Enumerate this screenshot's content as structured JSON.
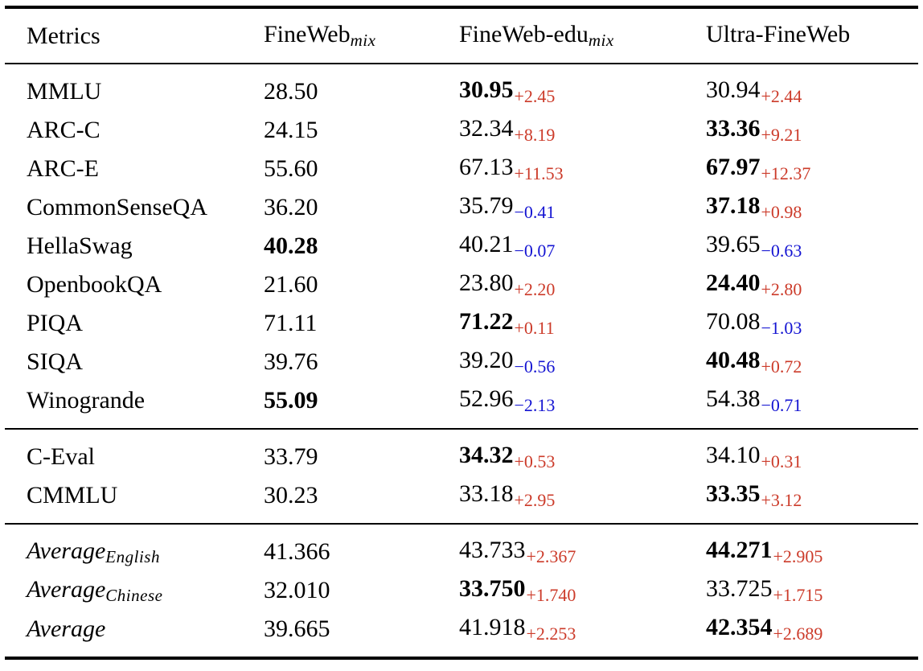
{
  "table": {
    "colors": {
      "gain": "#cc3b2a",
      "loss": "#1414d2"
    },
    "header": {
      "metrics": "Metrics",
      "col1": {
        "name": "FineWeb",
        "sub": "mix"
      },
      "col2": {
        "name": "FineWeb-edu",
        "sub": "mix"
      },
      "col3": {
        "name": "Ultra-FineWeb",
        "sub": ""
      }
    },
    "sections": [
      {
        "rows": [
          {
            "metric": "MMLU",
            "italic": false,
            "metric_sub": "",
            "cells": [
              {
                "value": "28.50",
                "bold": false,
                "delta": "",
                "dir": ""
              },
              {
                "value": "30.95",
                "bold": true,
                "delta": "+2.45",
                "dir": "pos"
              },
              {
                "value": "30.94",
                "bold": false,
                "delta": "+2.44",
                "dir": "pos"
              }
            ]
          },
          {
            "metric": "ARC-C",
            "italic": false,
            "metric_sub": "",
            "cells": [
              {
                "value": "24.15",
                "bold": false,
                "delta": "",
                "dir": ""
              },
              {
                "value": "32.34",
                "bold": false,
                "delta": "+8.19",
                "dir": "pos"
              },
              {
                "value": "33.36",
                "bold": true,
                "delta": "+9.21",
                "dir": "pos"
              }
            ]
          },
          {
            "metric": "ARC-E",
            "italic": false,
            "metric_sub": "",
            "cells": [
              {
                "value": "55.60",
                "bold": false,
                "delta": "",
                "dir": ""
              },
              {
                "value": "67.13",
                "bold": false,
                "delta": "+11.53",
                "dir": "pos"
              },
              {
                "value": "67.97",
                "bold": true,
                "delta": "+12.37",
                "dir": "pos"
              }
            ]
          },
          {
            "metric": "CommonSenseQA",
            "italic": false,
            "metric_sub": "",
            "cells": [
              {
                "value": "36.20",
                "bold": false,
                "delta": "",
                "dir": ""
              },
              {
                "value": "35.79",
                "bold": false,
                "delta": "−0.41",
                "dir": "neg"
              },
              {
                "value": "37.18",
                "bold": true,
                "delta": "+0.98",
                "dir": "pos"
              }
            ]
          },
          {
            "metric": "HellaSwag",
            "italic": false,
            "metric_sub": "",
            "cells": [
              {
                "value": "40.28",
                "bold": true,
                "delta": "",
                "dir": ""
              },
              {
                "value": "40.21",
                "bold": false,
                "delta": "−0.07",
                "dir": "neg"
              },
              {
                "value": "39.65",
                "bold": false,
                "delta": "−0.63",
                "dir": "neg"
              }
            ]
          },
          {
            "metric": "OpenbookQA",
            "italic": false,
            "metric_sub": "",
            "cells": [
              {
                "value": "21.60",
                "bold": false,
                "delta": "",
                "dir": ""
              },
              {
                "value": "23.80",
                "bold": false,
                "delta": "+2.20",
                "dir": "pos"
              },
              {
                "value": "24.40",
                "bold": true,
                "delta": "+2.80",
                "dir": "pos"
              }
            ]
          },
          {
            "metric": "PIQA",
            "italic": false,
            "metric_sub": "",
            "cells": [
              {
                "value": "71.11",
                "bold": false,
                "delta": "",
                "dir": ""
              },
              {
                "value": "71.22",
                "bold": true,
                "delta": "+0.11",
                "dir": "pos"
              },
              {
                "value": "70.08",
                "bold": false,
                "delta": "−1.03",
                "dir": "neg"
              }
            ]
          },
          {
            "metric": "SIQA",
            "italic": false,
            "metric_sub": "",
            "cells": [
              {
                "value": "39.76",
                "bold": false,
                "delta": "",
                "dir": ""
              },
              {
                "value": "39.20",
                "bold": false,
                "delta": "−0.56",
                "dir": "neg"
              },
              {
                "value": "40.48",
                "bold": true,
                "delta": "+0.72",
                "dir": "pos"
              }
            ]
          },
          {
            "metric": "Winogrande",
            "italic": false,
            "metric_sub": "",
            "cells": [
              {
                "value": "55.09",
                "bold": true,
                "delta": "",
                "dir": ""
              },
              {
                "value": "52.96",
                "bold": false,
                "delta": "−2.13",
                "dir": "neg"
              },
              {
                "value": "54.38",
                "bold": false,
                "delta": "−0.71",
                "dir": "neg"
              }
            ]
          }
        ]
      },
      {
        "rows": [
          {
            "metric": "C-Eval",
            "italic": false,
            "metric_sub": "",
            "cells": [
              {
                "value": "33.79",
                "bold": false,
                "delta": "",
                "dir": ""
              },
              {
                "value": "34.32",
                "bold": true,
                "delta": "+0.53",
                "dir": "pos"
              },
              {
                "value": "34.10",
                "bold": false,
                "delta": "+0.31",
                "dir": "pos"
              }
            ]
          },
          {
            "metric": "CMMLU",
            "italic": false,
            "metric_sub": "",
            "cells": [
              {
                "value": "30.23",
                "bold": false,
                "delta": "",
                "dir": ""
              },
              {
                "value": "33.18",
                "bold": false,
                "delta": "+2.95",
                "dir": "pos"
              },
              {
                "value": "33.35",
                "bold": true,
                "delta": "+3.12",
                "dir": "pos"
              }
            ]
          }
        ]
      },
      {
        "rows": [
          {
            "metric": "Average",
            "italic": true,
            "metric_sub": "English",
            "cells": [
              {
                "value": "41.366",
                "bold": false,
                "delta": "",
                "dir": ""
              },
              {
                "value": "43.733",
                "bold": false,
                "delta": "+2.367",
                "dir": "pos"
              },
              {
                "value": "44.271",
                "bold": true,
                "delta": "+2.905",
                "dir": "pos"
              }
            ]
          },
          {
            "metric": "Average",
            "italic": true,
            "metric_sub": "Chinese",
            "cells": [
              {
                "value": "32.010",
                "bold": false,
                "delta": "",
                "dir": ""
              },
              {
                "value": "33.750",
                "bold": true,
                "delta": "+1.740",
                "dir": "pos"
              },
              {
                "value": "33.725",
                "bold": false,
                "delta": "+1.715",
                "dir": "pos"
              }
            ]
          },
          {
            "metric": "Average",
            "italic": true,
            "metric_sub": "",
            "cells": [
              {
                "value": "39.665",
                "bold": false,
                "delta": "",
                "dir": ""
              },
              {
                "value": "41.918",
                "bold": false,
                "delta": "+2.253",
                "dir": "pos"
              },
              {
                "value": "42.354",
                "bold": true,
                "delta": "+2.689",
                "dir": "pos"
              }
            ]
          }
        ]
      }
    ]
  }
}
